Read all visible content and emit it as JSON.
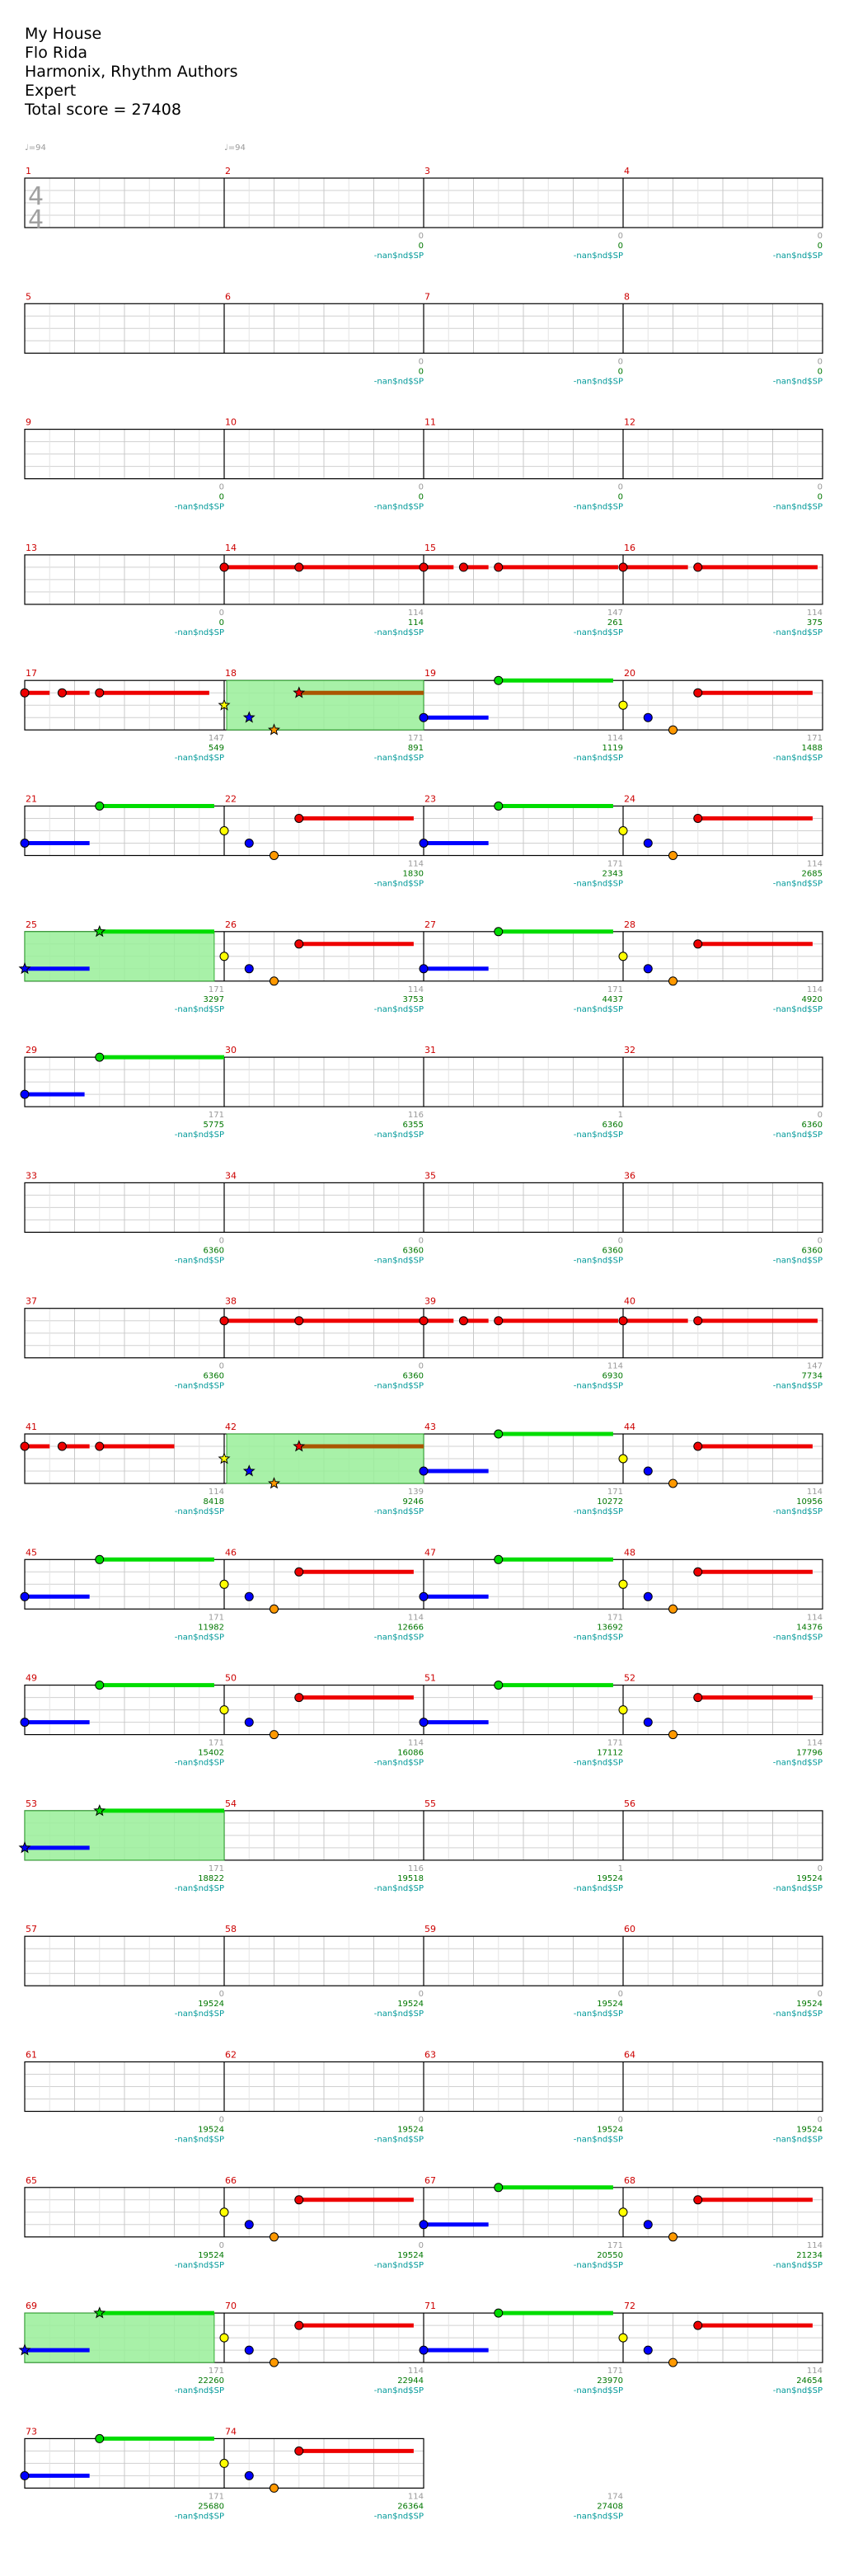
{
  "header": {
    "title": "My House",
    "artist": "Flo Rida",
    "authors": "Harmonix, Rhythm Authors",
    "difficulty": "Expert",
    "total_score": "Total score = 27408"
  },
  "tempo_markers": [
    "♩=94",
    "♩=94"
  ],
  "time_signature": {
    "top": "4",
    "bottom": "4"
  },
  "colors": {
    "green": "#00dd00",
    "red": "#ee0000",
    "yellow": "#ffff00",
    "blue": "#0000ff",
    "orange": "#ff9900",
    "measure_number": "#cc0000",
    "score": "#007700",
    "delta": "#999999",
    "label": "#009999",
    "star_power": "#99ee99"
  },
  "score_label": "-nan$nd$SP",
  "measures": [
    {
      "n": 1,
      "delta": "",
      "score": ""
    },
    {
      "n": 2,
      "delta": "0",
      "score": "0"
    },
    {
      "n": 3,
      "delta": "0",
      "score": "0"
    },
    {
      "n": 4,
      "delta": "0",
      "score": "0"
    },
    {
      "n": 5,
      "delta": "",
      "score": ""
    },
    {
      "n": 6,
      "delta": "0",
      "score": "0"
    },
    {
      "n": 7,
      "delta": "0",
      "score": "0"
    },
    {
      "n": 8,
      "delta": "0",
      "score": "0"
    },
    {
      "n": 9,
      "delta": "0",
      "score": "0"
    },
    {
      "n": 10,
      "delta": "0",
      "score": "0"
    },
    {
      "n": 11,
      "delta": "0",
      "score": "0"
    },
    {
      "n": 12,
      "delta": "0",
      "score": "0"
    },
    {
      "n": 13,
      "delta": "0",
      "score": "0"
    },
    {
      "n": 14,
      "delta": "114",
      "score": "114"
    },
    {
      "n": 15,
      "delta": "147",
      "score": "261"
    },
    {
      "n": 16,
      "delta": "114",
      "score": "375"
    },
    {
      "n": 17,
      "delta": "147",
      "score": "549"
    },
    {
      "n": 18,
      "delta": "171",
      "score": "891"
    },
    {
      "n": 19,
      "delta": "114",
      "score": "1119"
    },
    {
      "n": 20,
      "delta": "171",
      "score": "1488"
    },
    {
      "n": 21,
      "delta": "",
      "score": ""
    },
    {
      "n": 22,
      "delta": "114",
      "score": "1830"
    },
    {
      "n": 23,
      "delta": "171",
      "score": "2343"
    },
    {
      "n": 24,
      "delta": "114",
      "score": "2685"
    },
    {
      "n": 25,
      "delta": "171",
      "score": "3297"
    },
    {
      "n": 26,
      "delta": "114",
      "score": "3753"
    },
    {
      "n": 27,
      "delta": "171",
      "score": "4437"
    },
    {
      "n": 28,
      "delta": "114",
      "score": "4920"
    },
    {
      "n": 29,
      "delta": "171",
      "score": "5775"
    },
    {
      "n": 30,
      "delta": "116",
      "score": "6355"
    },
    {
      "n": 31,
      "delta": "1",
      "score": "6360"
    },
    {
      "n": 32,
      "delta": "0",
      "score": "6360"
    },
    {
      "n": 33,
      "delta": "0",
      "score": "6360"
    },
    {
      "n": 34,
      "delta": "0",
      "score": "6360"
    },
    {
      "n": 35,
      "delta": "0",
      "score": "6360"
    },
    {
      "n": 36,
      "delta": "0",
      "score": "6360"
    },
    {
      "n": 37,
      "delta": "0",
      "score": "6360"
    },
    {
      "n": 38,
      "delta": "0",
      "score": "6360"
    },
    {
      "n": 39,
      "delta": "114",
      "score": "6930"
    },
    {
      "n": 40,
      "delta": "147",
      "score": "7734"
    },
    {
      "n": 41,
      "delta": "114",
      "score": "8418"
    },
    {
      "n": 42,
      "delta": "139",
      "score": "9246"
    },
    {
      "n": 43,
      "delta": "171",
      "score": "10272"
    },
    {
      "n": 44,
      "delta": "114",
      "score": "10956"
    },
    {
      "n": 45,
      "delta": "171",
      "score": "11982"
    },
    {
      "n": 46,
      "delta": "114",
      "score": "12666"
    },
    {
      "n": 47,
      "delta": "171",
      "score": "13692"
    },
    {
      "n": 48,
      "delta": "114",
      "score": "14376"
    },
    {
      "n": 49,
      "delta": "171",
      "score": "15402"
    },
    {
      "n": 50,
      "delta": "114",
      "score": "16086"
    },
    {
      "n": 51,
      "delta": "171",
      "score": "17112"
    },
    {
      "n": 52,
      "delta": "114",
      "score": "17796"
    },
    {
      "n": 53,
      "delta": "171",
      "score": "18822"
    },
    {
      "n": 54,
      "delta": "116",
      "score": "19518"
    },
    {
      "n": 55,
      "delta": "1",
      "score": "19524"
    },
    {
      "n": 56,
      "delta": "0",
      "score": "19524"
    },
    {
      "n": 57,
      "delta": "0",
      "score": "19524"
    },
    {
      "n": 58,
      "delta": "0",
      "score": "19524"
    },
    {
      "n": 59,
      "delta": "0",
      "score": "19524"
    },
    {
      "n": 60,
      "delta": "0",
      "score": "19524"
    },
    {
      "n": 61,
      "delta": "0",
      "score": "19524"
    },
    {
      "n": 62,
      "delta": "0",
      "score": "19524"
    },
    {
      "n": 63,
      "delta": "0",
      "score": "19524"
    },
    {
      "n": 64,
      "delta": "0",
      "score": "19524"
    },
    {
      "n": 65,
      "delta": "0",
      "score": "19524"
    },
    {
      "n": 66,
      "delta": "0",
      "score": "19524"
    },
    {
      "n": 67,
      "delta": "171",
      "score": "20550"
    },
    {
      "n": 68,
      "delta": "114",
      "score": "21234"
    },
    {
      "n": 69,
      "delta": "171",
      "score": "22260"
    },
    {
      "n": 70,
      "delta": "114",
      "score": "22944"
    },
    {
      "n": 71,
      "delta": "171",
      "score": "23970"
    },
    {
      "n": 72,
      "delta": "114",
      "score": "24654"
    },
    {
      "n": 73,
      "delta": "171",
      "score": "25680"
    },
    {
      "n": 74,
      "delta": "114",
      "score": "26364"
    },
    {
      "n": 75,
      "delta": "174",
      "score": "27408"
    }
  ]
}
